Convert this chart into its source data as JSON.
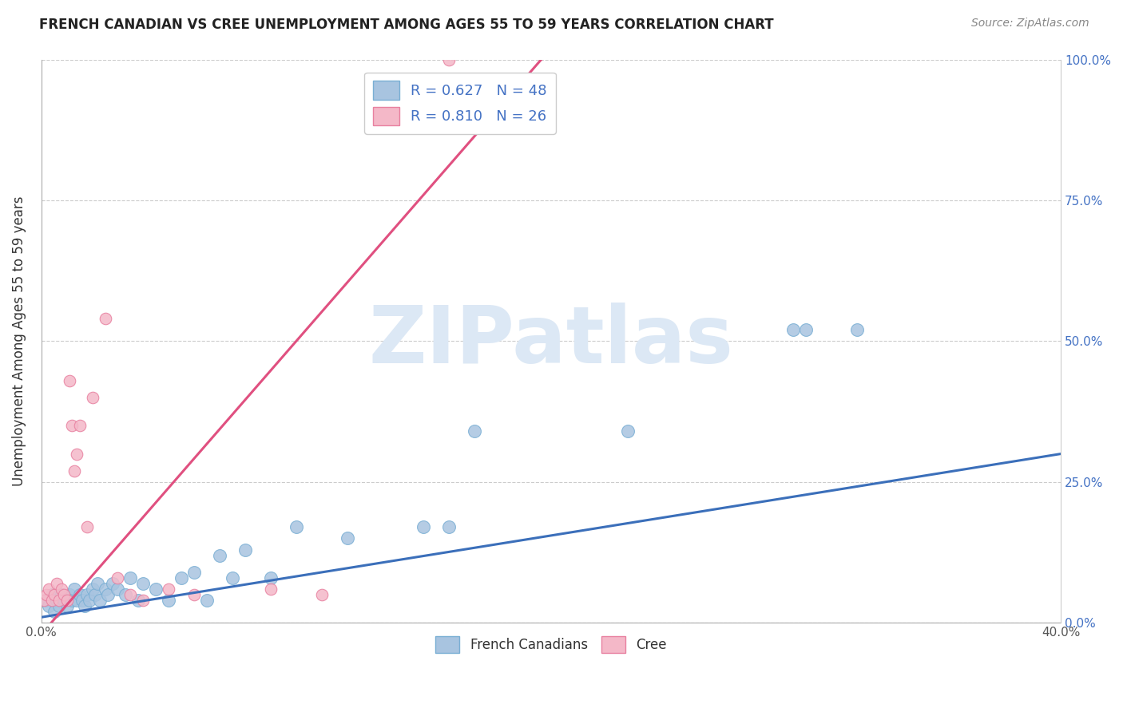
{
  "title": "FRENCH CANADIAN VS CREE UNEMPLOYMENT AMONG AGES 55 TO 59 YEARS CORRELATION CHART",
  "source": "Source: ZipAtlas.com",
  "ylabel": "Unemployment Among Ages 55 to 59 years",
  "xlim": [
    0.0,
    0.4
  ],
  "ylim": [
    0.0,
    1.0
  ],
  "xticks": [
    0.0,
    0.05,
    0.1,
    0.15,
    0.2,
    0.25,
    0.3,
    0.35,
    0.4
  ],
  "yticks": [
    0.0,
    0.25,
    0.5,
    0.75,
    1.0
  ],
  "xtick_labels": [
    "0.0%",
    "",
    "",
    "",
    "",
    "",
    "",
    "",
    "40.0%"
  ],
  "ytick_labels_right": [
    "0.0%",
    "25.0%",
    "50.0%",
    "75.0%",
    "100.0%"
  ],
  "french_R": 0.627,
  "french_N": 48,
  "cree_R": 0.81,
  "cree_N": 26,
  "french_color": "#a8c4e0",
  "french_edge_color": "#7aafd4",
  "french_line_color": "#3b6fba",
  "cree_color": "#f4b8c8",
  "cree_edge_color": "#e880a0",
  "cree_line_color": "#e05080",
  "right_axis_color": "#4472c4",
  "watermark_color": "#dce8f5",
  "legend_label_color": "#4472c4",
  "french_x": [
    0.002,
    0.003,
    0.004,
    0.005,
    0.006,
    0.007,
    0.008,
    0.009,
    0.01,
    0.011,
    0.012,
    0.013,
    0.014,
    0.015,
    0.016,
    0.017,
    0.018,
    0.019,
    0.02,
    0.021,
    0.022,
    0.023,
    0.025,
    0.026,
    0.028,
    0.03,
    0.033,
    0.035,
    0.038,
    0.04,
    0.045,
    0.05,
    0.055,
    0.06,
    0.065,
    0.07,
    0.075,
    0.08,
    0.09,
    0.1,
    0.12,
    0.15,
    0.16,
    0.17,
    0.23,
    0.295,
    0.3,
    0.32
  ],
  "french_y": [
    0.04,
    0.03,
    0.05,
    0.02,
    0.04,
    0.03,
    0.05,
    0.04,
    0.03,
    0.05,
    0.04,
    0.06,
    0.04,
    0.05,
    0.04,
    0.03,
    0.05,
    0.04,
    0.06,
    0.05,
    0.07,
    0.04,
    0.06,
    0.05,
    0.07,
    0.06,
    0.05,
    0.08,
    0.04,
    0.07,
    0.06,
    0.04,
    0.08,
    0.09,
    0.04,
    0.12,
    0.08,
    0.13,
    0.08,
    0.17,
    0.15,
    0.17,
    0.17,
    0.34,
    0.34,
    0.52,
    0.52,
    0.52
  ],
  "cree_x": [
    0.001,
    0.002,
    0.003,
    0.004,
    0.005,
    0.006,
    0.007,
    0.008,
    0.009,
    0.01,
    0.011,
    0.012,
    0.013,
    0.014,
    0.015,
    0.018,
    0.02,
    0.025,
    0.03,
    0.035,
    0.04,
    0.05,
    0.06,
    0.09,
    0.11,
    0.16
  ],
  "cree_y": [
    0.04,
    0.05,
    0.06,
    0.04,
    0.05,
    0.07,
    0.04,
    0.06,
    0.05,
    0.04,
    0.43,
    0.35,
    0.27,
    0.3,
    0.35,
    0.17,
    0.4,
    0.54,
    0.08,
    0.05,
    0.04,
    0.06,
    0.05,
    0.06,
    0.05,
    1.0
  ],
  "cree_line_x0": 0.0,
  "cree_line_y0": -0.02,
  "cree_line_x1": 0.2,
  "cree_line_y1": 1.02,
  "french_line_x0": 0.0,
  "french_line_y0": 0.01,
  "french_line_x1": 0.4,
  "french_line_y1": 0.3
}
